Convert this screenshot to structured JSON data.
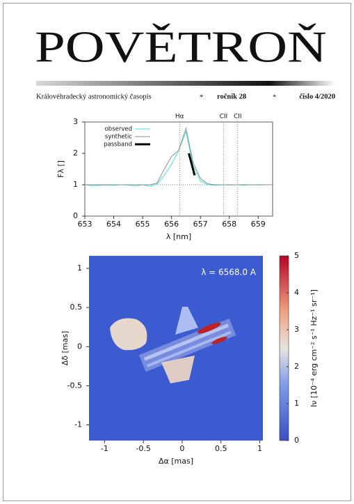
{
  "header": {
    "title": "POVĚTROŇ",
    "subtitle": "Královéhradecký astronomický časopis",
    "separator": "*",
    "volume": "ročník 28",
    "issue": "číslo 4/2020"
  },
  "chart_data": [
    {
      "type": "line",
      "xlabel": "λ [nm]",
      "ylabel": "Fλ []",
      "x": [
        653,
        653.25,
        653.5,
        653.75,
        654,
        654.25,
        654.5,
        654.75,
        655,
        655.25,
        655.5,
        655.75,
        656,
        656.25,
        656.5,
        656.75,
        657,
        657.25,
        657.5,
        657.75,
        658,
        658.25,
        658.5,
        658.75,
        659,
        659.25,
        659.5
      ],
      "series": [
        {
          "name": "observed",
          "color": "#40e0e0",
          "values": [
            1,
            0.97,
            0.98,
            0.99,
            0.98,
            1,
            0.99,
            0.96,
            1,
            0.95,
            1.02,
            1.3,
            1.65,
            2.1,
            2.7,
            1.6,
            1.12,
            1.0,
            0.98,
            1,
            0.99,
            1,
            0.98,
            1,
            0.99,
            1,
            1
          ]
        },
        {
          "name": "synthetic",
          "color": "#909090",
          "values": [
            1,
            1,
            1,
            1,
            1,
            1,
            1,
            1,
            1,
            1,
            1.05,
            1.5,
            1.9,
            2.1,
            2.8,
            1.7,
            1.2,
            1.03,
            1,
            1,
            1,
            1,
            1,
            1,
            1,
            1,
            1
          ]
        },
        {
          "name": "passband",
          "color": "#000000",
          "x": [
            656.6,
            656.7,
            656.8
          ],
          "values": [
            2.0,
            1.65,
            1.3
          ]
        }
      ],
      "xlim": [
        653,
        659.5
      ],
      "xticks": [
        653,
        654,
        655,
        656,
        657,
        658,
        659
      ],
      "ylim": [
        0,
        3
      ],
      "yticks": [
        0,
        1,
        2,
        3
      ],
      "hline": 1,
      "annotations": [
        {
          "label": "Hα",
          "x": 656.28
        },
        {
          "label": "CII",
          "x": 657.8
        },
        {
          "label": "CII",
          "x": 658.29
        }
      ]
    },
    {
      "type": "heatmap",
      "xlabel": "Δα [mas]",
      "ylabel": "Δδ [mas]",
      "annotation": "λ = 6568.0 A",
      "xlim": [
        -1.2,
        1.04
      ],
      "xticks": [
        -1,
        -0.5,
        0,
        0.5,
        1
      ],
      "ylim": [
        -1.2,
        1.16
      ],
      "yticks": [
        -1,
        -0.5,
        0,
        0.5,
        1
      ],
      "colorbar": {
        "label": "Iν [10⁻⁴ erg cm⁻² s⁻¹ Hz⁻¹ sr⁻¹]",
        "lim": [
          0,
          5
        ],
        "ticks": [
          0,
          1,
          2,
          3,
          4,
          5
        ]
      }
    }
  ]
}
